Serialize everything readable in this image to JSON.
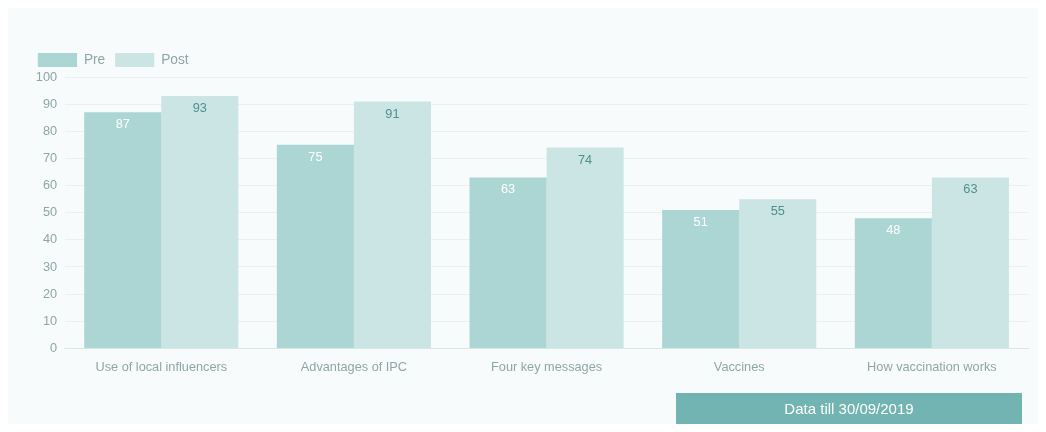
{
  "chart_data": {
    "type": "bar",
    "categories": [
      "Use of local influencers",
      "Advantages of IPC",
      "Four key messages",
      "Vaccines",
      "How vaccination works"
    ],
    "series": [
      {
        "name": "Pre",
        "color": "#acd6d4",
        "values": [
          87,
          75,
          63,
          51,
          48
        ]
      },
      {
        "name": "Post",
        "color": "#cbe5e5",
        "values": [
          93,
          91,
          74,
          55,
          63
        ]
      }
    ],
    "ylim": [
      0,
      100
    ],
    "yticks": [
      0,
      10,
      20,
      30,
      40,
      50,
      60,
      70,
      80,
      90,
      100
    ],
    "grid": "y",
    "legend": "top left",
    "data_labels": true,
    "annotations": [
      "Data till  30/09/2019"
    ]
  }
}
